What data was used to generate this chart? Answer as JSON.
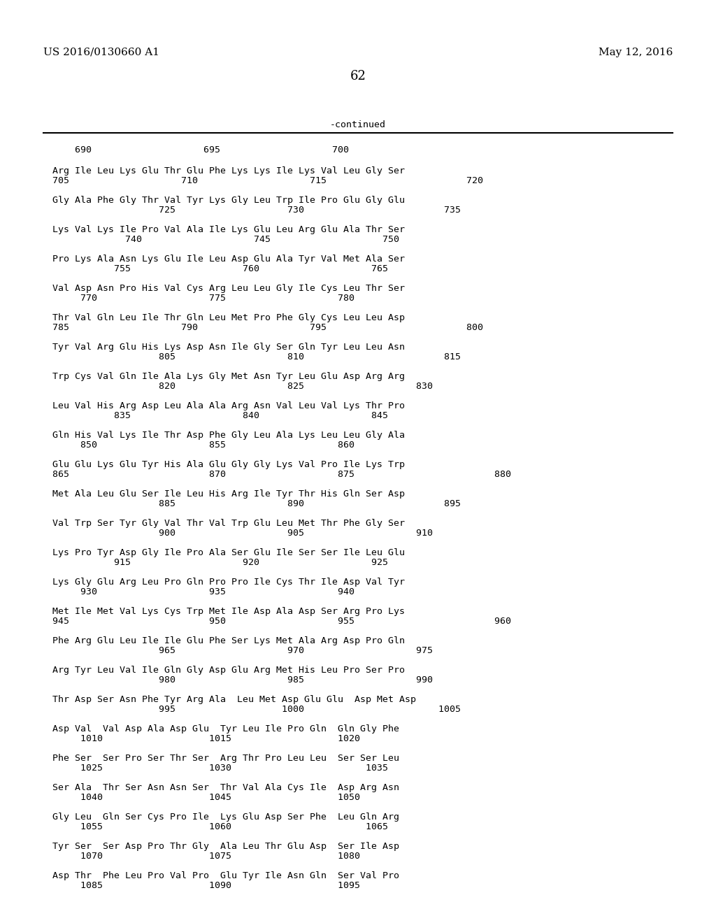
{
  "header_left": "US 2016/0130660 A1",
  "header_right": "May 12, 2016",
  "page_number": "62",
  "continued_label": "-continued",
  "ruler_line": "    690                    695                    700",
  "content": [
    [
      "Arg Ile Leu Lys Glu Thr Glu Phe Lys Lys Ile Lys Val Leu Gly Ser",
      "705                    710                    715                         720"
    ],
    [
      "Gly Ala Phe Gly Thr Val Tyr Lys Gly Leu Trp Ile Pro Glu Gly Glu",
      "                   725                    730                         735"
    ],
    [
      "Lys Val Lys Ile Pro Val Ala Ile Lys Glu Leu Arg Glu Ala Thr Ser",
      "             740                    745                    750"
    ],
    [
      "Pro Lys Ala Asn Lys Glu Ile Leu Asp Glu Ala Tyr Val Met Ala Ser",
      "           755                    760                    765"
    ],
    [
      "Val Asp Asn Pro His Val Cys Arg Leu Leu Gly Ile Cys Leu Thr Ser",
      "     770                    775                    780"
    ],
    [
      "Thr Val Gln Leu Ile Thr Gln Leu Met Pro Phe Gly Cys Leu Leu Asp",
      "785                    790                    795                         800"
    ],
    [
      "Tyr Val Arg Glu His Lys Asp Asn Ile Gly Ser Gln Tyr Leu Leu Asn",
      "                   805                    810                         815"
    ],
    [
      "Trp Cys Val Gln Ile Ala Lys Gly Met Asn Tyr Leu Glu Asp Arg Arg",
      "                   820                    825                    830"
    ],
    [
      "Leu Val His Arg Asp Leu Ala Ala Arg Asn Val Leu Val Lys Thr Pro",
      "           835                    840                    845"
    ],
    [
      "Gln His Val Lys Ile Thr Asp Phe Gly Leu Ala Lys Leu Leu Gly Ala",
      "     850                    855                    860"
    ],
    [
      "Glu Glu Lys Glu Tyr His Ala Glu Gly Gly Lys Val Pro Ile Lys Trp",
      "865                         870                    875                         880"
    ],
    [
      "Met Ala Leu Glu Ser Ile Leu His Arg Ile Tyr Thr His Gln Ser Asp",
      "                   885                    890                         895"
    ],
    [
      "Val Trp Ser Tyr Gly Val Thr Val Trp Glu Leu Met Thr Phe Gly Ser",
      "                   900                    905                    910"
    ],
    [
      "Lys Pro Tyr Asp Gly Ile Pro Ala Ser Glu Ile Ser Ser Ile Leu Glu",
      "           915                    920                    925"
    ],
    [
      "Lys Gly Glu Arg Leu Pro Gln Pro Pro Ile Cys Thr Ile Asp Val Tyr",
      "     930                    935                    940"
    ],
    [
      "Met Ile Met Val Lys Cys Trp Met Ile Asp Ala Asp Ser Arg Pro Lys",
      "945                         950                    955                         960"
    ],
    [
      "Phe Arg Glu Leu Ile Ile Glu Phe Ser Lys Met Ala Arg Asp Pro Gln",
      "                   965                    970                    975"
    ],
    [
      "Arg Tyr Leu Val Ile Gln Gly Asp Glu Arg Met His Leu Pro Ser Pro",
      "                   980                    985                    990"
    ],
    [
      "Thr Asp Ser Asn Phe Tyr Arg Ala  Leu Met Asp Glu Glu  Asp Met Asp",
      "                   995                   1000                        1005"
    ],
    [
      "Asp Val  Val Asp Ala Asp Glu  Tyr Leu Ile Pro Gln  Gln Gly Phe",
      "     1010                   1015                   1020"
    ],
    [
      "Phe Ser  Ser Pro Ser Thr Ser  Arg Thr Pro Leu Leu  Ser Ser Leu",
      "     1025                   1030                        1035"
    ],
    [
      "Ser Ala  Thr Ser Asn Asn Ser  Thr Val Ala Cys Ile  Asp Arg Asn",
      "     1040                   1045                   1050"
    ],
    [
      "Gly Leu  Gln Ser Cys Pro Ile  Lys Glu Asp Ser Phe  Leu Gln Arg",
      "     1055                   1060                        1065"
    ],
    [
      "Tyr Ser  Ser Asp Pro Thr Gly  Ala Leu Thr Glu Asp  Ser Ile Asp",
      "     1070                   1075                   1080"
    ],
    [
      "Asp Thr  Phe Leu Pro Val Pro  Glu Tyr Ile Asn Gln  Ser Val Pro",
      "     1085                   1090                   1095"
    ]
  ]
}
